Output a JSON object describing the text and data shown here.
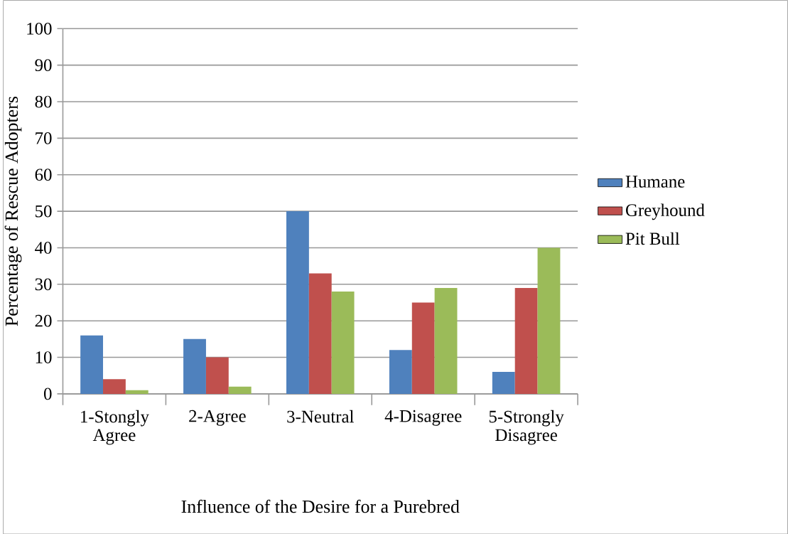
{
  "chart_data": {
    "type": "bar",
    "xlabel": "Influence of the Desire for a Purebred",
    "ylabel": "Percentage of Rescue Adopters",
    "categories": [
      "1-Stongly Agree",
      "2-Agree",
      "3-Neutral",
      "4-Disagree",
      "5-Strongly Disagree"
    ],
    "series": [
      {
        "name": "Humane",
        "color": "#4f81bd",
        "values": [
          16,
          15,
          50,
          12,
          6
        ]
      },
      {
        "name": "Greyhound",
        "color": "#c0504d",
        "values": [
          4,
          10,
          33,
          25,
          29
        ]
      },
      {
        "name": "Pit Bull",
        "color": "#9bbb59",
        "values": [
          1,
          2,
          28,
          29,
          40
        ]
      }
    ],
    "ylim": [
      0,
      100
    ],
    "yticks": [
      0,
      10,
      20,
      30,
      40,
      50,
      60,
      70,
      80,
      90,
      100
    ],
    "grid": "y",
    "legend": "right"
  }
}
